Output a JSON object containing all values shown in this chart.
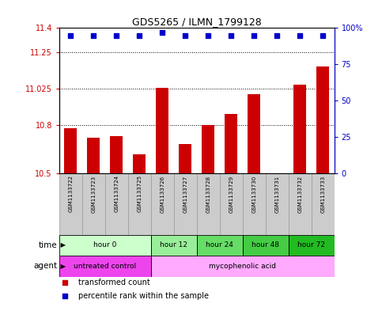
{
  "title": "GDS5265 / ILMN_1799128",
  "samples": [
    "GSM1133722",
    "GSM1133723",
    "GSM1133724",
    "GSM1133725",
    "GSM1133726",
    "GSM1133727",
    "GSM1133728",
    "GSM1133729",
    "GSM1133730",
    "GSM1133731",
    "GSM1133732",
    "GSM1133733"
  ],
  "bar_values": [
    10.78,
    10.72,
    10.73,
    10.62,
    11.03,
    10.68,
    10.8,
    10.87,
    10.99,
    10.5,
    11.05,
    11.16
  ],
  "percentile_values": [
    95,
    95,
    95,
    95,
    97,
    95,
    95,
    95,
    95,
    95,
    95,
    95
  ],
  "bar_color": "#cc0000",
  "percentile_color": "#0000cc",
  "ylim_left": [
    10.5,
    11.4
  ],
  "ylim_right": [
    0,
    100
  ],
  "yticks_left": [
    10.5,
    10.8,
    11.025,
    11.25,
    11.4
  ],
  "ytick_labels_left": [
    "10.5",
    "10.8",
    "11.025",
    "11.25",
    "11.4"
  ],
  "yticks_right": [
    0,
    25,
    50,
    75,
    100
  ],
  "ytick_labels_right": [
    "0",
    "25",
    "50",
    "75",
    "100%"
  ],
  "grid_values": [
    10.8,
    11.025,
    11.25
  ],
  "time_groups": [
    {
      "label": "hour 0",
      "start": 0,
      "end": 4,
      "color": "#ccffcc"
    },
    {
      "label": "hour 12",
      "start": 4,
      "end": 6,
      "color": "#99ee99"
    },
    {
      "label": "hour 24",
      "start": 6,
      "end": 8,
      "color": "#66dd66"
    },
    {
      "label": "hour 48",
      "start": 8,
      "end": 10,
      "color": "#44cc44"
    },
    {
      "label": "hour 72",
      "start": 10,
      "end": 12,
      "color": "#22bb22"
    }
  ],
  "agent_groups": [
    {
      "label": "untreated control",
      "start": 0,
      "end": 4,
      "color": "#ee44ee"
    },
    {
      "label": "mycophenolic acid",
      "start": 4,
      "end": 12,
      "color": "#ffaaff"
    }
  ],
  "sample_bg": "#cccccc",
  "sample_border": "#999999",
  "time_row_label": "time",
  "agent_row_label": "agent",
  "legend_items": [
    {
      "label": "transformed count",
      "color": "#cc0000"
    },
    {
      "label": "percentile rank within the sample",
      "color": "#0000cc"
    }
  ],
  "background_color": "#ffffff",
  "bar_bottom": 10.5,
  "bar_width": 0.55
}
